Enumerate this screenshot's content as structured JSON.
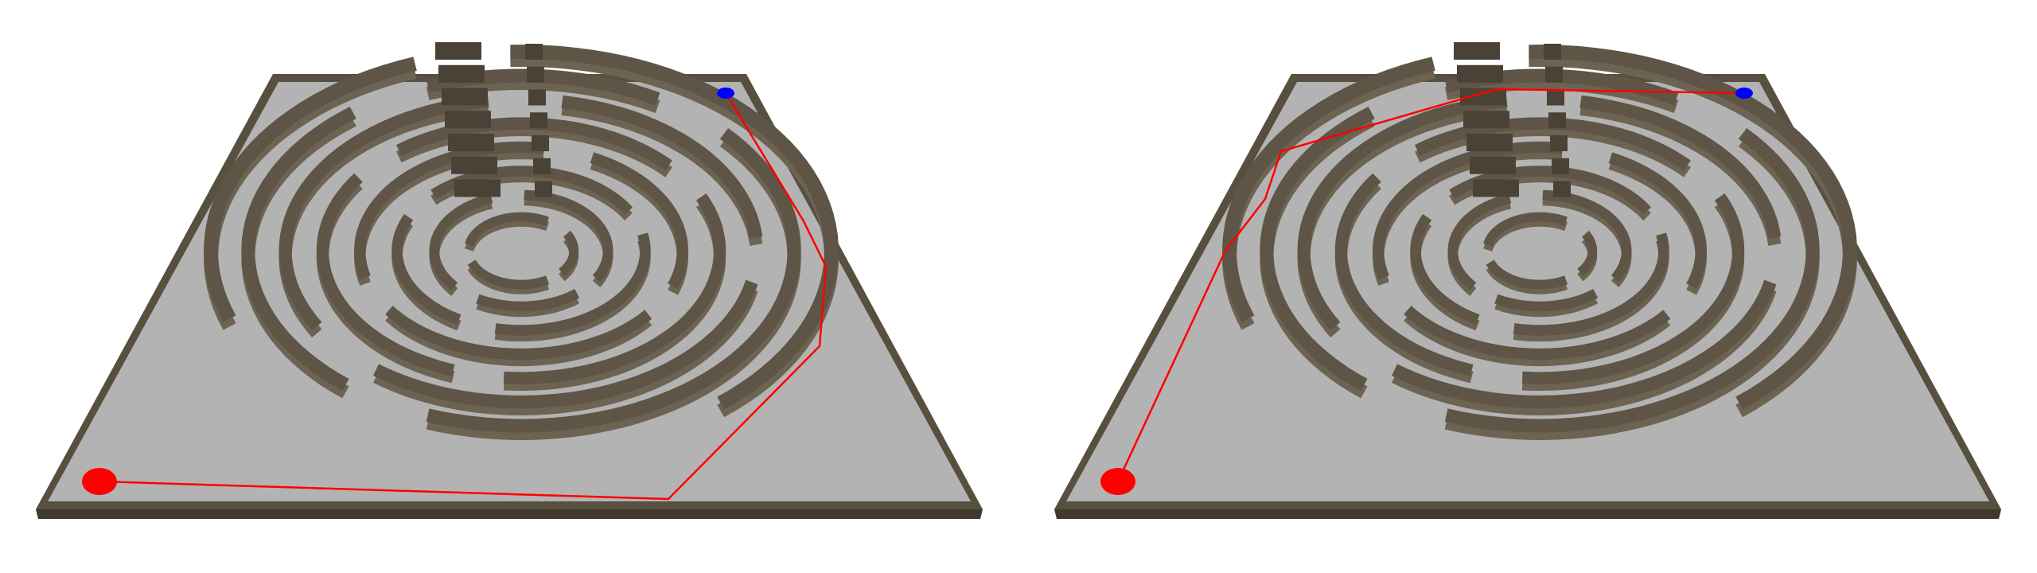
{
  "scene": {
    "type": "3d-circular-maze-comparison",
    "panel_count": 2
  },
  "colors": {
    "background": "#ffffff",
    "floor": "#b3b3b3",
    "wall_top": "#5e5546",
    "wall_dark": "#4a4236",
    "wall_side": "#6d6352",
    "border_wall": "#57503f",
    "path": "#ff0000",
    "start_marker": "#ff0000",
    "goal_marker": "#0000ff"
  },
  "panels": [
    {
      "name": "left-maze-view",
      "start_marker": "red-start-disc",
      "goal_marker": "blue-goal-disc",
      "path_style": "red-polyline-around-maze"
    },
    {
      "name": "right-maze-view",
      "start_marker": "red-start-disc",
      "goal_marker": "blue-goal-disc",
      "path_style": "red-polyline-through-maze"
    }
  ]
}
